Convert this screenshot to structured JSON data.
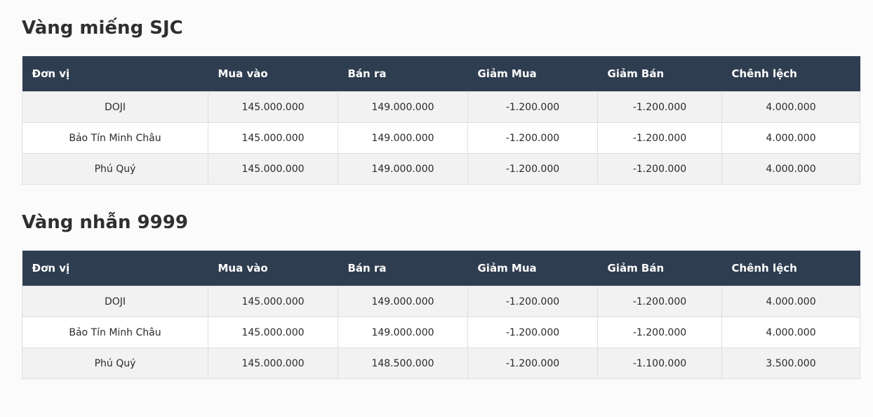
{
  "sections": [
    {
      "title": "Vàng miếng SJC",
      "headers": [
        "Đơn vị",
        "Mua vào",
        "Bán ra",
        "Giảm Mua",
        "Giảm Bán",
        "Chênh lệch"
      ],
      "rows": [
        [
          "DOJI",
          "145.000.000",
          "149.000.000",
          "-1.200.000",
          "-1.200.000",
          "4.000.000"
        ],
        [
          "Bảo Tín Minh Châu",
          "145.000.000",
          "149.000.000",
          "-1.200.000",
          "-1.200.000",
          "4.000.000"
        ],
        [
          "Phú Quý",
          "145.000.000",
          "149.000.000",
          "-1.200.000",
          "-1.200.000",
          "4.000.000"
        ]
      ]
    },
    {
      "title": "Vàng nhẫn 9999",
      "headers": [
        "Đơn vị",
        "Mua vào",
        "Bán ra",
        "Giảm Mua",
        "Giảm Bán",
        "Chênh lệch"
      ],
      "rows": [
        [
          "DOJI",
          "145.000.000",
          "149.000.000",
          "-1.200.000",
          "-1.200.000",
          "4.000.000"
        ],
        [
          "Bảo Tín Minh Châu",
          "145.000.000",
          "149.000.000",
          "-1.200.000",
          "-1.200.000",
          "4.000.000"
        ],
        [
          "Phú Quý",
          "145.000.000",
          "148.500.000",
          "-1.200.000",
          "-1.100.000",
          "3.500.000"
        ]
      ]
    }
  ],
  "colors": {
    "header_bg": "#2f3d50",
    "header_text": "#ffffff",
    "row_odd_bg": "#f2f2f2",
    "row_even_bg": "#ffffff",
    "border": "#dedede",
    "page_bg": "#fbfbfb"
  }
}
